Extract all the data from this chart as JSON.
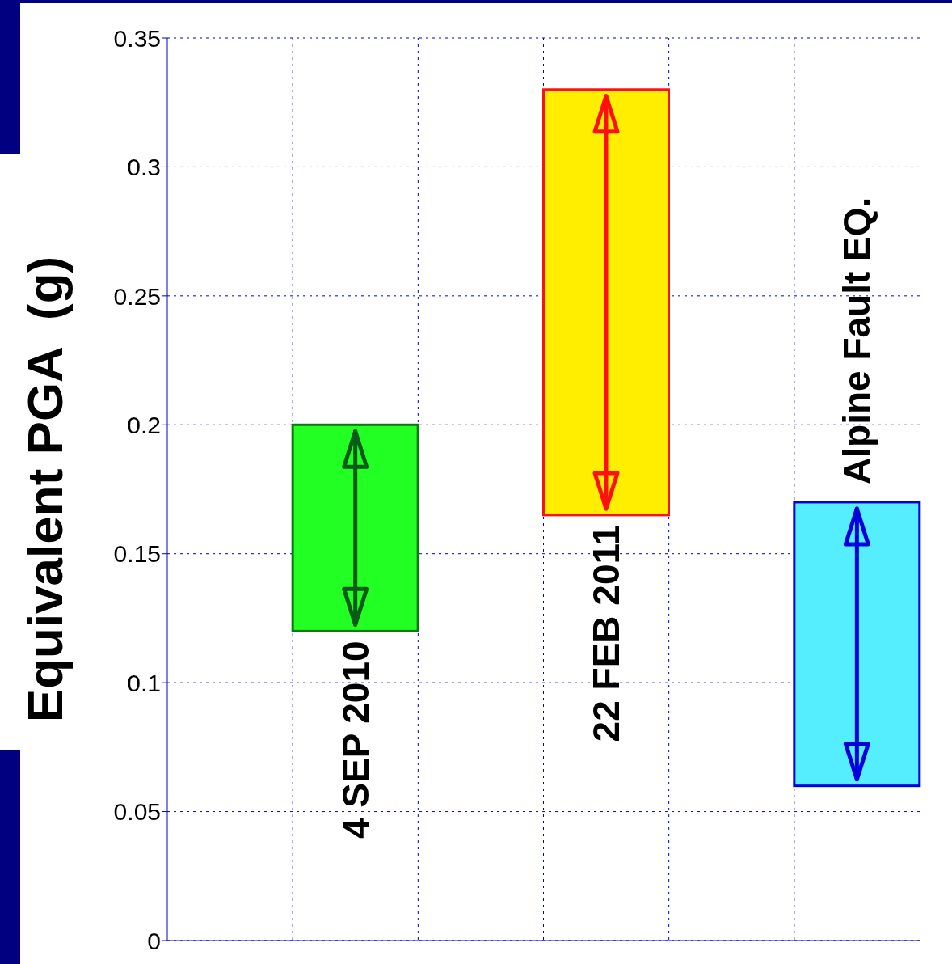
{
  "chart_data": {
    "type": "bar",
    "ylabel": "Equivalent PGA  (g)",
    "categories": [
      null,
      null,
      null,
      null,
      null,
      null
    ],
    "annotations": [
      "4 SEP 2010",
      "22 FEB 2011",
      "Alpine Fault EQ."
    ],
    "values": [
      null,
      0.08,
      null,
      0.165,
      null,
      0.11
    ],
    "base": [
      null,
      0.12,
      null,
      0.165,
      null,
      0.06
    ],
    "colors": [
      "#ffffff",
      "#22ff22",
      "#ffffff",
      "#ffee00",
      "#ffffff",
      "#55eeff"
    ],
    "ylim": [
      0,
      0.35
    ],
    "yticks": [
      0,
      0.05,
      0.1,
      0.15,
      0.2,
      0.25,
      0.3,
      0.35
    ],
    "grid": true,
    "tick_labels": "y"
  }
}
